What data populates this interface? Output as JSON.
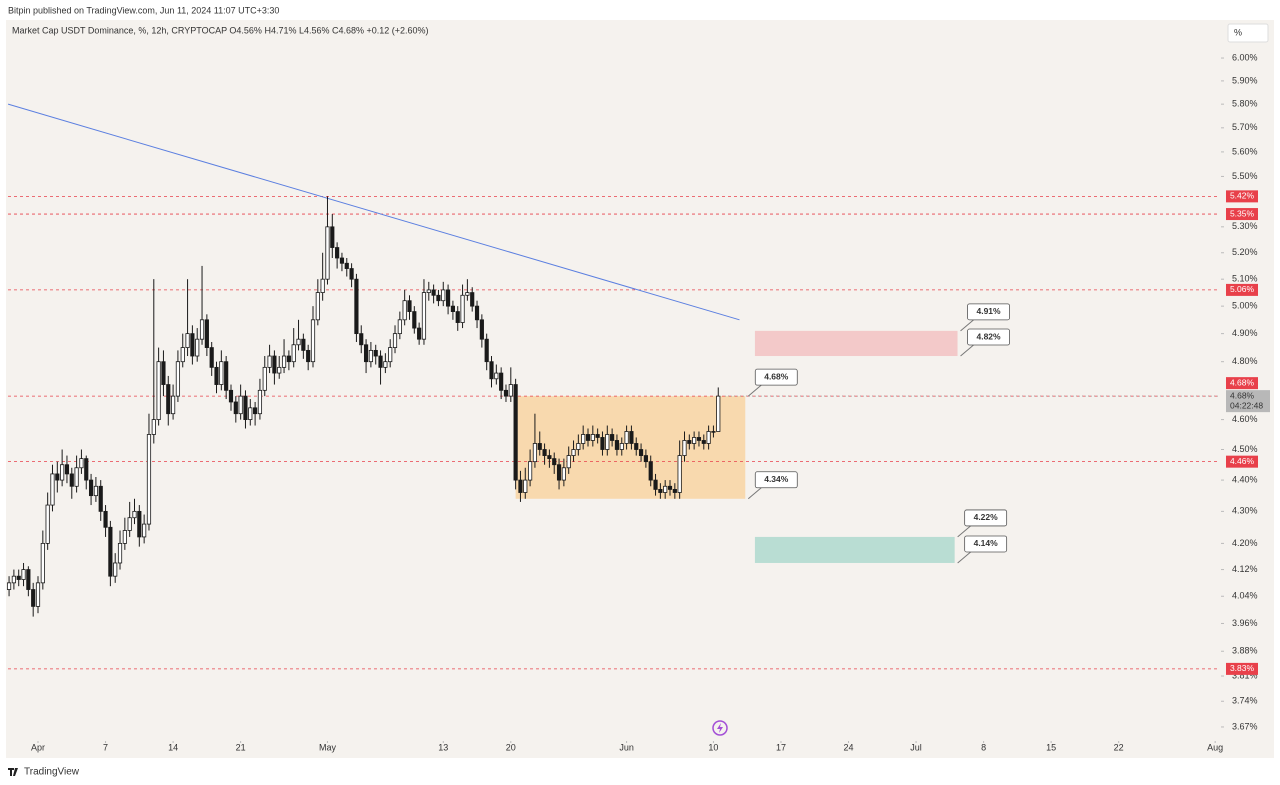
{
  "chart_data": {
    "type": "candlestick",
    "publisher": "Bitpin published on TradingView.com, Jun 11, 2024 11:07 UTC+3:30",
    "title": "Market Cap USDT Dominance, %, 12h, CRYPTOCAP O4.56% H4.71% L4.56% C4.68% +0.12 (+2.60%)",
    "scale_button": "%",
    "brand": "TradingView",
    "log_scale": true,
    "ylim": [
      3.635,
      6.08
    ],
    "yticks": [
      {
        "value": 6.0,
        "label": "6.00%"
      },
      {
        "value": 5.9,
        "label": "5.90%"
      },
      {
        "value": 5.8,
        "label": "5.80%"
      },
      {
        "value": 5.7,
        "label": "5.70%"
      },
      {
        "value": 5.6,
        "label": "5.60%"
      },
      {
        "value": 5.5,
        "label": "5.50%"
      },
      {
        "value": 5.3,
        "label": "5.30%"
      },
      {
        "value": 5.2,
        "label": "5.20%"
      },
      {
        "value": 5.1,
        "label": "5.10%"
      },
      {
        "value": 5.0,
        "label": "5.00%"
      },
      {
        "value": 4.9,
        "label": "4.90%"
      },
      {
        "value": 4.8,
        "label": "4.80%"
      },
      {
        "value": 4.6,
        "label": "4.60%"
      },
      {
        "value": 4.5,
        "label": "4.50%"
      },
      {
        "value": 4.4,
        "label": "4.40%"
      },
      {
        "value": 4.3,
        "label": "4.30%"
      },
      {
        "value": 4.2,
        "label": "4.20%"
      },
      {
        "value": 4.12,
        "label": "4.12%"
      },
      {
        "value": 4.04,
        "label": "4.04%"
      },
      {
        "value": 3.96,
        "label": "3.96%"
      },
      {
        "value": 3.88,
        "label": "3.88%"
      },
      {
        "value": 3.81,
        "label": "3.81%"
      },
      {
        "value": 3.74,
        "label": "3.74%"
      },
      {
        "value": 3.67,
        "label": "3.67%"
      }
    ],
    "xlim": [
      -3.11,
      122.5
    ],
    "xticks": [
      {
        "value": 0,
        "label": "Apr"
      },
      7,
      14,
      21,
      {
        "value": 30,
        "label": "May"
      },
      {
        "value": 42,
        "label": "13"
      },
      {
        "value": 49,
        "label": "20"
      },
      {
        "value": 61,
        "label": "Jun"
      },
      {
        "value": 70,
        "label": "10"
      },
      {
        "value": 77,
        "label": "17"
      },
      {
        "value": 84,
        "label": "24"
      },
      {
        "value": 91,
        "label": "Jul"
      },
      {
        "value": 98,
        "label": "8"
      },
      {
        "value": 105,
        "label": "15"
      },
      {
        "value": 112,
        "label": "22"
      },
      {
        "value": 122,
        "label": "Aug"
      }
    ],
    "up_color": "#ffffff",
    "down_color": "#1a1a1a",
    "x": [
      -3,
      -2.5,
      -2,
      -1.5,
      -1,
      -0.5,
      0,
      0.5,
      1,
      1.5,
      2,
      2.5,
      3,
      3.5,
      4,
      4.5,
      5,
      5.5,
      6,
      6.5,
      7,
      7.5,
      8,
      8.5,
      9,
      9.5,
      10,
      10.5,
      11,
      11.5,
      12,
      12.5,
      13,
      13.5,
      14,
      14.5,
      15,
      15.5,
      16,
      16.5,
      17,
      17.5,
      18,
      18.5,
      19,
      19.5,
      20,
      20.5,
      21,
      21.5,
      22,
      22.5,
      23,
      23.5,
      24,
      24.5,
      25,
      25.5,
      26,
      26.5,
      27,
      27.5,
      28,
      28.5,
      29,
      29.5,
      30,
      30.5,
      31,
      31.5,
      32,
      32.5,
      33,
      33.5,
      34,
      34.5,
      35,
      35.5,
      36,
      36.5,
      37,
      37.5,
      38,
      38.5,
      39,
      39.5,
      40,
      40.5,
      41,
      41.5,
      42,
      42.5,
      43,
      43.5,
      44,
      44.5,
      45,
      45.5,
      46,
      46.5,
      47,
      47.5,
      48,
      48.5,
      49,
      49.5,
      50,
      50.5,
      51,
      51.5,
      52,
      52.5,
      53,
      53.5,
      54,
      54.5,
      55,
      55.5,
      56,
      56.5,
      57,
      57.5,
      58,
      58.5,
      59,
      59.5,
      60,
      60.5,
      61,
      61.5,
      62,
      62.5,
      63,
      63.5,
      64,
      64.5,
      65,
      65.5,
      66,
      66.5,
      67,
      67.5,
      68,
      68.5,
      69,
      69.5,
      70,
      70.5
    ],
    "candles": [
      [
        4.06,
        4.1,
        4.04,
        4.08
      ],
      [
        4.08,
        4.12,
        4.06,
        4.1
      ],
      [
        4.1,
        4.12,
        4.07,
        4.09
      ],
      [
        4.09,
        4.14,
        4.07,
        4.12
      ],
      [
        4.12,
        4.13,
        4.04,
        4.06
      ],
      [
        4.06,
        4.08,
        3.98,
        4.01
      ],
      [
        4.01,
        4.1,
        3.99,
        4.08
      ],
      [
        4.08,
        4.24,
        4.06,
        4.2
      ],
      [
        4.2,
        4.36,
        4.18,
        4.32
      ],
      [
        4.32,
        4.45,
        4.3,
        4.42
      ],
      [
        4.42,
        4.46,
        4.36,
        4.4
      ],
      [
        4.4,
        4.5,
        4.38,
        4.45
      ],
      [
        4.45,
        4.48,
        4.39,
        4.42
      ],
      [
        4.42,
        4.44,
        4.34,
        4.38
      ],
      [
        4.38,
        4.48,
        4.36,
        4.44
      ],
      [
        4.44,
        4.5,
        4.42,
        4.47
      ],
      [
        4.47,
        4.48,
        4.37,
        4.4
      ],
      [
        4.4,
        4.42,
        4.32,
        4.35
      ],
      [
        4.35,
        4.41,
        4.33,
        4.38
      ],
      [
        4.38,
        4.4,
        4.27,
        4.3
      ],
      [
        4.3,
        4.32,
        4.22,
        4.25
      ],
      [
        4.25,
        4.27,
        4.07,
        4.1
      ],
      [
        4.1,
        4.17,
        4.08,
        4.14
      ],
      [
        4.14,
        4.24,
        4.12,
        4.2
      ],
      [
        4.2,
        4.28,
        4.18,
        4.24
      ],
      [
        4.24,
        4.33,
        4.22,
        4.28
      ],
      [
        4.28,
        4.34,
        4.26,
        4.3
      ],
      [
        4.3,
        4.32,
        4.19,
        4.22
      ],
      [
        4.22,
        4.29,
        4.2,
        4.26
      ],
      [
        4.26,
        4.62,
        4.24,
        4.55
      ],
      [
        4.55,
        5.1,
        4.52,
        4.6
      ],
      [
        4.6,
        4.85,
        4.58,
        4.8
      ],
      [
        4.8,
        4.84,
        4.68,
        4.72
      ],
      [
        4.72,
        4.75,
        4.58,
        4.62
      ],
      [
        4.62,
        4.72,
        4.6,
        4.68
      ],
      [
        4.68,
        4.84,
        4.66,
        4.8
      ],
      [
        4.8,
        4.9,
        4.78,
        4.85
      ],
      [
        4.85,
        5.1,
        4.82,
        4.9
      ],
      [
        4.9,
        4.93,
        4.79,
        4.82
      ],
      [
        4.82,
        4.92,
        4.8,
        4.88
      ],
      [
        4.88,
        5.15,
        4.86,
        4.95
      ],
      [
        4.95,
        4.97,
        4.82,
        4.85
      ],
      [
        4.85,
        4.87,
        4.75,
        4.78
      ],
      [
        4.78,
        4.8,
        4.69,
        4.72
      ],
      [
        4.72,
        4.84,
        4.7,
        4.8
      ],
      [
        4.8,
        4.82,
        4.67,
        4.7
      ],
      [
        4.7,
        4.72,
        4.63,
        4.66
      ],
      [
        4.66,
        4.68,
        4.59,
        4.62
      ],
      [
        4.62,
        4.72,
        4.6,
        4.68
      ],
      [
        4.68,
        4.7,
        4.57,
        4.6
      ],
      [
        4.6,
        4.67,
        4.58,
        4.64
      ],
      [
        4.64,
        4.66,
        4.58,
        4.62
      ],
      [
        4.62,
        4.74,
        4.6,
        4.7
      ],
      [
        4.7,
        4.82,
        4.68,
        4.78
      ],
      [
        4.78,
        4.86,
        4.76,
        4.82
      ],
      [
        4.82,
        4.84,
        4.72,
        4.76
      ],
      [
        4.76,
        4.82,
        4.74,
        4.78
      ],
      [
        4.78,
        4.88,
        4.76,
        4.82
      ],
      [
        4.82,
        4.84,
        4.77,
        4.8
      ],
      [
        4.8,
        4.92,
        4.78,
        4.86
      ],
      [
        4.86,
        4.95,
        4.84,
        4.88
      ],
      [
        4.88,
        4.9,
        4.81,
        4.84
      ],
      [
        4.84,
        4.86,
        4.77,
        4.8
      ],
      [
        4.8,
        5.0,
        4.78,
        4.95
      ],
      [
        4.95,
        5.1,
        4.93,
        5.05
      ],
      [
        5.05,
        5.2,
        5.02,
        5.1
      ],
      [
        5.1,
        5.42,
        5.08,
        5.3
      ],
      [
        5.3,
        5.35,
        5.18,
        5.22
      ],
      [
        5.22,
        5.24,
        5.14,
        5.18
      ],
      [
        5.18,
        5.2,
        5.13,
        5.16
      ],
      [
        5.16,
        5.18,
        5.11,
        5.14
      ],
      [
        5.14,
        5.16,
        5.07,
        5.1
      ],
      [
        5.1,
        5.12,
        4.87,
        4.9
      ],
      [
        4.9,
        4.93,
        4.83,
        4.86
      ],
      [
        4.86,
        4.88,
        4.76,
        4.8
      ],
      [
        4.8,
        4.87,
        4.78,
        4.84
      ],
      [
        4.84,
        4.86,
        4.79,
        4.82
      ],
      [
        4.82,
        4.84,
        4.72,
        4.78
      ],
      [
        4.78,
        4.83,
        4.76,
        4.8
      ],
      [
        4.8,
        4.88,
        4.78,
        4.85
      ],
      [
        4.85,
        4.93,
        4.83,
        4.9
      ],
      [
        4.9,
        4.98,
        4.88,
        4.95
      ],
      [
        4.95,
        5.06,
        4.93,
        5.02
      ],
      [
        5.02,
        5.04,
        4.95,
        4.98
      ],
      [
        4.98,
        5.0,
        4.9,
        4.92
      ],
      [
        4.92,
        4.94,
        4.86,
        4.88
      ],
      [
        4.88,
        5.1,
        4.86,
        5.05
      ],
      [
        5.05,
        5.09,
        5.02,
        5.06
      ],
      [
        5.06,
        5.08,
        5.01,
        5.04
      ],
      [
        5.04,
        5.06,
        5.0,
        5.02
      ],
      [
        5.02,
        5.09,
        5.0,
        5.06
      ],
      [
        5.06,
        5.08,
        4.97,
        5.0
      ],
      [
        5.0,
        5.02,
        4.95,
        4.98
      ],
      [
        4.98,
        5.0,
        4.91,
        4.94
      ],
      [
        4.94,
        5.08,
        4.92,
        5.04
      ],
      [
        5.04,
        5.1,
        5.02,
        5.05
      ],
      [
        5.05,
        5.07,
        4.98,
        5.0
      ],
      [
        5.0,
        5.02,
        4.92,
        4.95
      ],
      [
        4.95,
        4.97,
        4.85,
        4.88
      ],
      [
        4.88,
        4.9,
        4.77,
        4.8
      ],
      [
        4.8,
        4.82,
        4.71,
        4.74
      ],
      [
        4.74,
        4.79,
        4.72,
        4.76
      ],
      [
        4.76,
        4.78,
        4.67,
        4.7
      ],
      [
        4.7,
        4.72,
        4.66,
        4.68
      ],
      [
        4.68,
        4.78,
        4.66,
        4.72
      ],
      [
        4.72,
        4.74,
        4.37,
        4.4
      ],
      [
        4.4,
        4.43,
        4.33,
        4.36
      ],
      [
        4.36,
        4.44,
        4.34,
        4.4
      ],
      [
        4.4,
        4.5,
        4.38,
        4.46
      ],
      [
        4.46,
        4.62,
        4.44,
        4.52
      ],
      [
        4.52,
        4.56,
        4.48,
        4.5
      ],
      [
        4.5,
        4.52,
        4.45,
        4.48
      ],
      [
        4.48,
        4.5,
        4.44,
        4.47
      ],
      [
        4.47,
        4.49,
        4.42,
        4.45
      ],
      [
        4.45,
        4.47,
        4.37,
        4.4
      ],
      [
        4.4,
        4.47,
        4.38,
        4.44
      ],
      [
        4.44,
        4.51,
        4.42,
        4.48
      ],
      [
        4.48,
        4.53,
        4.46,
        4.5
      ],
      [
        4.5,
        4.55,
        4.48,
        4.52
      ],
      [
        4.52,
        4.58,
        4.5,
        4.55
      ],
      [
        4.55,
        4.57,
        4.51,
        4.53
      ],
      [
        4.53,
        4.58,
        4.51,
        4.55
      ],
      [
        4.55,
        4.57,
        4.52,
        4.54
      ],
      [
        4.54,
        4.56,
        4.48,
        4.5
      ],
      [
        4.5,
        4.58,
        4.48,
        4.55
      ],
      [
        4.55,
        4.57,
        4.51,
        4.53
      ],
      [
        4.53,
        4.55,
        4.48,
        4.5
      ],
      [
        4.5,
        4.54,
        4.48,
        4.52
      ],
      [
        4.52,
        4.58,
        4.5,
        4.56
      ],
      [
        4.56,
        4.58,
        4.5,
        4.52
      ],
      [
        4.52,
        4.54,
        4.48,
        4.5
      ],
      [
        4.5,
        4.52,
        4.46,
        4.48
      ],
      [
        4.48,
        4.5,
        4.44,
        4.46
      ],
      [
        4.46,
        4.48,
        4.38,
        4.4
      ],
      [
        4.4,
        4.42,
        4.35,
        4.37
      ],
      [
        4.37,
        4.39,
        4.34,
        4.36
      ],
      [
        4.36,
        4.4,
        4.34,
        4.38
      ],
      [
        4.38,
        4.4,
        4.35,
        4.37
      ],
      [
        4.37,
        4.39,
        4.34,
        4.36
      ],
      [
        4.36,
        4.53,
        4.34,
        4.48
      ],
      [
        4.48,
        4.56,
        4.46,
        4.53
      ],
      [
        4.53,
        4.55,
        4.5,
        4.52
      ],
      [
        4.52,
        4.56,
        4.5,
        4.54
      ],
      [
        4.54,
        4.56,
        4.51,
        4.53
      ],
      [
        4.53,
        4.55,
        4.5,
        4.52
      ],
      [
        4.52,
        4.58,
        4.5,
        4.56
      ],
      [
        4.56,
        4.58,
        4.54,
        4.56
      ],
      [
        4.56,
        4.71,
        4.56,
        4.68
      ]
    ],
    "levels": [
      {
        "value": 5.42,
        "label": "5.42%"
      },
      {
        "value": 5.35,
        "label": "5.35%"
      },
      {
        "value": 5.06,
        "label": "5.06%"
      },
      {
        "value": 4.68,
        "label": "4.68%"
      },
      {
        "value": 4.46,
        "label": "4.46%"
      },
      {
        "value": 3.83,
        "label": "3.83%"
      }
    ],
    "level_color": "#e8404a",
    "last_price": {
      "value": 4.68,
      "label": "4.68%",
      "countdown": "04:22:48"
    },
    "trendline": {
      "x": [
        -3.1,
        72.7
      ],
      "values": [
        5.8,
        4.95
      ],
      "color": "#5b7fe0"
    },
    "zones": [
      {
        "x": [
          49.5,
          73.3
        ],
        "values": [
          4.34,
          4.68
        ],
        "labels": [
          "4.34%",
          "4.68%"
        ],
        "color": "#f8d9ae"
      },
      {
        "x": [
          74.3,
          95.3
        ],
        "values": [
          4.82,
          4.91
        ],
        "labels": [
          "4.82%",
          "4.91%"
        ],
        "color": "#f3c9c9"
      },
      {
        "x": [
          74.3,
          95.0
        ],
        "values": [
          4.14,
          4.22
        ],
        "labels": [
          "4.14%",
          "4.22%"
        ],
        "color": "#b9ddd3"
      }
    ]
  }
}
